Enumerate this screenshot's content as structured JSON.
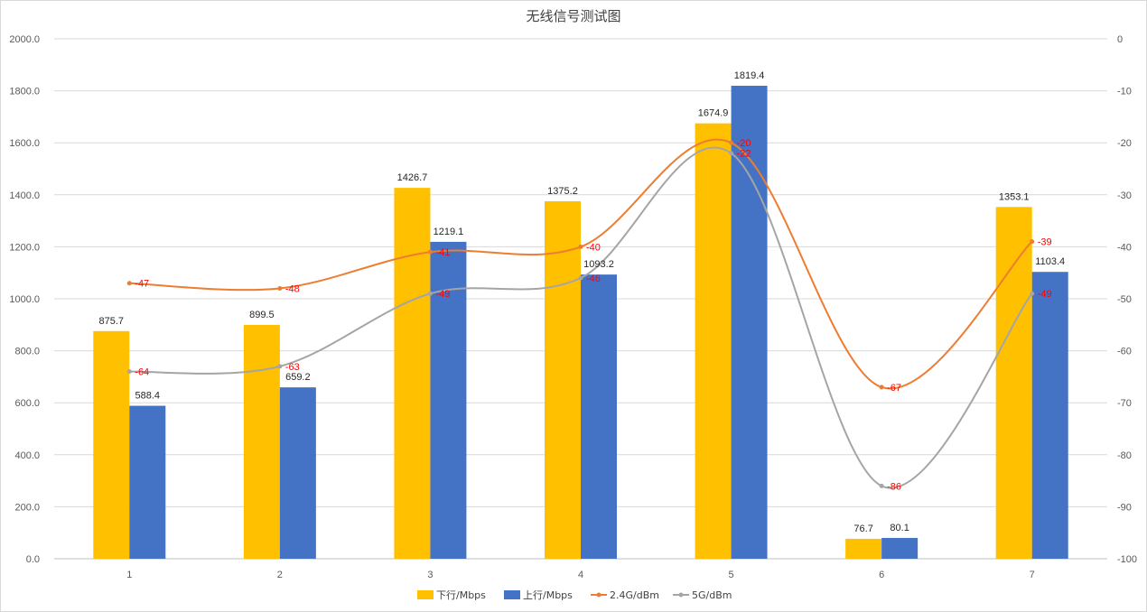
{
  "chart_data": {
    "type": "bar",
    "title": "无线信号测试图",
    "categories": [
      "1",
      "2",
      "3",
      "4",
      "5",
      "6",
      "7"
    ],
    "y_left": {
      "lim": [
        0,
        2000
      ],
      "ticks": [
        "0.0",
        "200.0",
        "400.0",
        "600.0",
        "800.0",
        "1000.0",
        "1200.0",
        "1400.0",
        "1600.0",
        "1800.0",
        "2000.0"
      ]
    },
    "y_right": {
      "lim": [
        -100,
        0
      ],
      "ticks": [
        "0",
        "-10",
        "-20",
        "-30",
        "-40",
        "-50",
        "-60",
        "-70",
        "-80",
        "-90",
        "-100"
      ]
    },
    "bar_series": [
      {
        "name": "下行/Mbps",
        "color": "#ffc000",
        "values": [
          875.7,
          899.5,
          1426.7,
          1375.2,
          1674.9,
          76.7,
          1353.1
        ],
        "labels": [
          "875.7",
          "899.5",
          "1426.7",
          "1375.2",
          "1674.9",
          "76.7",
          "1353.1"
        ]
      },
      {
        "name": "上行/Mbps",
        "color": "#4472c4",
        "values": [
          588.4,
          659.2,
          1219.1,
          1093.2,
          1819.4,
          80.1,
          1103.4
        ],
        "labels": [
          "588.4",
          "659.2",
          "1219.1",
          "1093.2",
          "1819.4",
          "80.1",
          "1103.4"
        ]
      }
    ],
    "line_series": [
      {
        "name": "2.4G/dBm",
        "color": "#ed7d31",
        "axis": "right",
        "values": [
          -47,
          -48,
          -41,
          -40,
          -20,
          -67,
          -39
        ],
        "labels": [
          "-47",
          "-48",
          "-41",
          "-40",
          "-20",
          "-67",
          "-39"
        ]
      },
      {
        "name": "5G/dBm",
        "color": "#a5a5a5",
        "axis": "right",
        "values": [
          -64,
          -63,
          -49,
          -46,
          -22,
          -86,
          -49
        ],
        "labels": [
          "-64",
          "-63",
          "-49",
          "-46",
          "-22",
          "-86",
          "-49"
        ]
      }
    ],
    "label_color": "#ff0000",
    "grid": true,
    "legend_position": "bottom"
  }
}
